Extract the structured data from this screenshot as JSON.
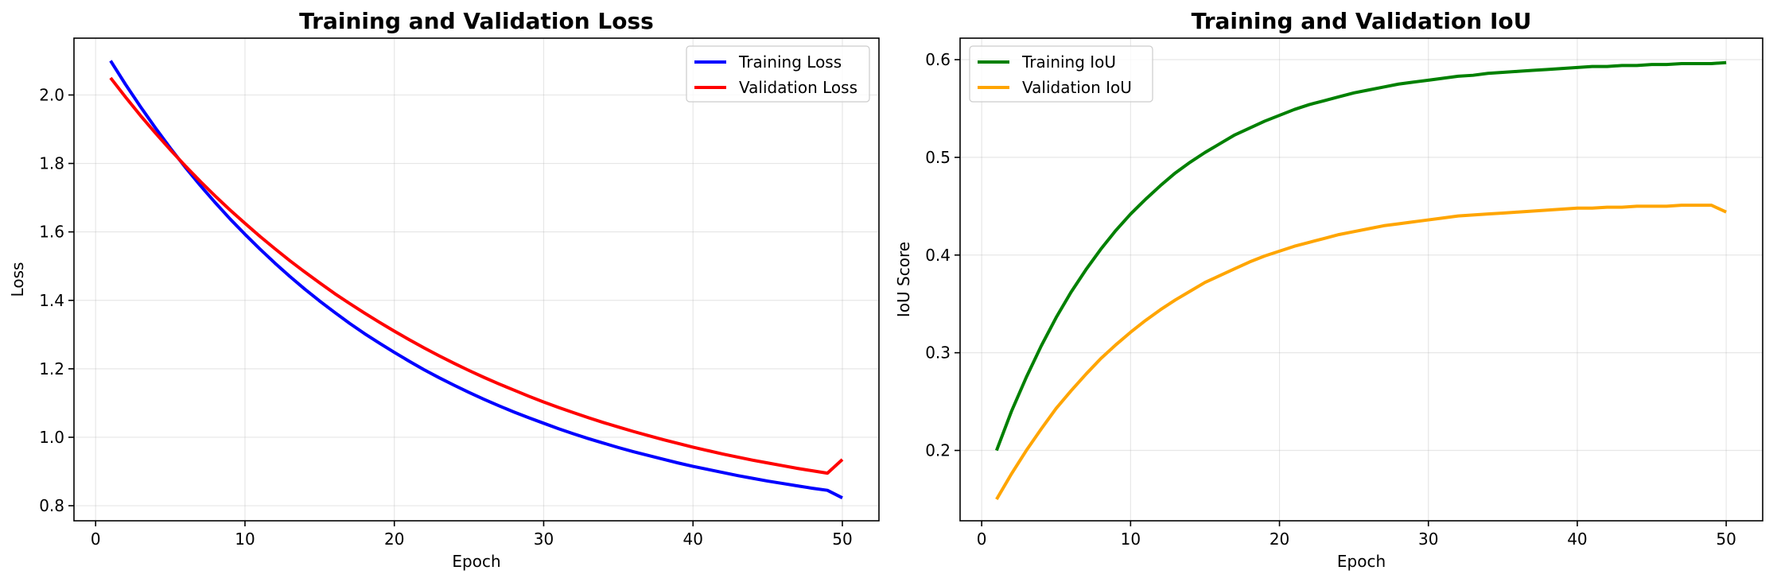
{
  "chart_data": [
    {
      "type": "line",
      "title": "Training and Validation Loss",
      "xlabel": "Epoch",
      "ylabel": "Loss",
      "xlim": [
        -1.45,
        52.45
      ],
      "ylim": [
        0.756,
        2.166
      ],
      "xticks": [
        0,
        10,
        20,
        30,
        40,
        50
      ],
      "xtick_labels": [
        "0",
        "10",
        "20",
        "30",
        "40",
        "50"
      ],
      "yticks": [
        0.8,
        1.0,
        1.2,
        1.4,
        1.6,
        1.8,
        2.0
      ],
      "ytick_labels": [
        "0.8",
        "1.0",
        "1.2",
        "1.4",
        "1.6",
        "1.8",
        "2.0"
      ],
      "grid": true,
      "legend_position": "upper right",
      "x": [
        1,
        2,
        3,
        4,
        5,
        6,
        7,
        8,
        9,
        10,
        11,
        12,
        13,
        14,
        15,
        16,
        17,
        18,
        19,
        20,
        21,
        22,
        23,
        24,
        25,
        26,
        27,
        28,
        29,
        30,
        31,
        32,
        33,
        34,
        35,
        36,
        37,
        38,
        39,
        40,
        41,
        42,
        43,
        44,
        45,
        46,
        47,
        48,
        49,
        50
      ],
      "series": [
        {
          "name": "Training Loss",
          "color": "#0000ff",
          "values": [
            2.1,
            2.031,
            1.966,
            1.904,
            1.845,
            1.789,
            1.736,
            1.686,
            1.638,
            1.593,
            1.55,
            1.509,
            1.47,
            1.433,
            1.398,
            1.365,
            1.333,
            1.303,
            1.275,
            1.248,
            1.222,
            1.197,
            1.174,
            1.152,
            1.131,
            1.111,
            1.092,
            1.074,
            1.057,
            1.041,
            1.025,
            1.01,
            0.996,
            0.983,
            0.97,
            0.958,
            0.947,
            0.936,
            0.925,
            0.915,
            0.906,
            0.897,
            0.888,
            0.88,
            0.872,
            0.865,
            0.858,
            0.851,
            0.845,
            0.823
          ]
        },
        {
          "name": "Validation Loss",
          "color": "#ff0000",
          "values": [
            2.05,
            1.994,
            1.94,
            1.889,
            1.84,
            1.793,
            1.748,
            1.705,
            1.664,
            1.625,
            1.587,
            1.551,
            1.516,
            1.483,
            1.451,
            1.42,
            1.391,
            1.363,
            1.336,
            1.31,
            1.285,
            1.261,
            1.238,
            1.216,
            1.195,
            1.175,
            1.156,
            1.138,
            1.12,
            1.103,
            1.087,
            1.072,
            1.057,
            1.043,
            1.03,
            1.017,
            1.005,
            0.993,
            0.982,
            0.971,
            0.961,
            0.951,
            0.942,
            0.933,
            0.925,
            0.917,
            0.909,
            0.902,
            0.895,
            0.935
          ]
        }
      ]
    },
    {
      "type": "line",
      "title": "Training and Validation IoU",
      "xlabel": "Epoch",
      "ylabel": "IoU Score",
      "xlim": [
        -1.45,
        52.45
      ],
      "ylim": [
        0.128,
        0.622
      ],
      "xticks": [
        0,
        10,
        20,
        30,
        40,
        50
      ],
      "xtick_labels": [
        "0",
        "10",
        "20",
        "30",
        "40",
        "50"
      ],
      "yticks": [
        0.2,
        0.3,
        0.4,
        0.5,
        0.6
      ],
      "ytick_labels": [
        "0.2",
        "0.3",
        "0.4",
        "0.5",
        "0.6"
      ],
      "grid": true,
      "legend_position": "upper left",
      "x": [
        1,
        2,
        3,
        4,
        5,
        6,
        7,
        8,
        9,
        10,
        11,
        12,
        13,
        14,
        15,
        16,
        17,
        18,
        19,
        20,
        21,
        22,
        23,
        24,
        25,
        26,
        27,
        28,
        29,
        30,
        31,
        32,
        33,
        34,
        35,
        36,
        37,
        38,
        39,
        40,
        41,
        42,
        43,
        44,
        45,
        46,
        47,
        48,
        49,
        50
      ],
      "series": [
        {
          "name": "Training IoU",
          "color": "#008000",
          "values": [
            0.2,
            0.24,
            0.275,
            0.307,
            0.336,
            0.362,
            0.385,
            0.406,
            0.425,
            0.442,
            0.457,
            0.471,
            0.484,
            0.495,
            0.505,
            0.514,
            0.523,
            0.53,
            0.537,
            0.543,
            0.549,
            0.554,
            0.558,
            0.562,
            0.566,
            0.569,
            0.572,
            0.575,
            0.577,
            0.579,
            0.581,
            0.583,
            0.584,
            0.586,
            0.587,
            0.588,
            0.589,
            0.59,
            0.591,
            0.592,
            0.593,
            0.593,
            0.594,
            0.594,
            0.595,
            0.595,
            0.596,
            0.596,
            0.596,
            0.597
          ]
        },
        {
          "name": "Validation IoU",
          "color": "#ffa500",
          "values": [
            0.15,
            0.176,
            0.2,
            0.222,
            0.243,
            0.261,
            0.278,
            0.294,
            0.308,
            0.321,
            0.333,
            0.344,
            0.354,
            0.363,
            0.372,
            0.379,
            0.386,
            0.393,
            0.399,
            0.404,
            0.409,
            0.413,
            0.417,
            0.421,
            0.424,
            0.427,
            0.43,
            0.432,
            0.434,
            0.436,
            0.438,
            0.44,
            0.441,
            0.442,
            0.443,
            0.444,
            0.445,
            0.446,
            0.447,
            0.448,
            0.448,
            0.449,
            0.449,
            0.45,
            0.45,
            0.45,
            0.451,
            0.451,
            0.451,
            0.444
          ]
        }
      ]
    }
  ]
}
